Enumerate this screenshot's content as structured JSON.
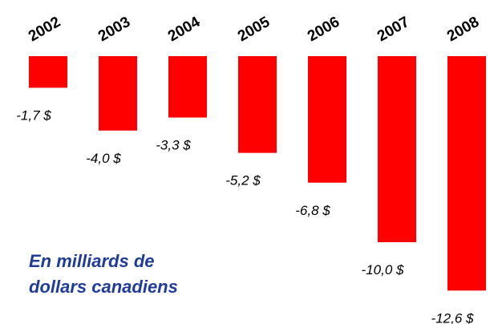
{
  "chart_data": {
    "type": "bar",
    "categories": [
      "2002",
      "2003",
      "2004",
      "2005",
      "2006",
      "2007",
      "2008"
    ],
    "values": [
      -1.7,
      -4.0,
      -3.3,
      -5.2,
      -6.8,
      -10.0,
      -12.6
    ],
    "value_labels": [
      "-1,7 $",
      "-4,0 $",
      "-3,3 $",
      "-5,2 $",
      "-6,8 $",
      "-10,0 $",
      "-12,6 $"
    ],
    "color": "#ff0000",
    "annotation": [
      "En milliards de",
      "dollars canadiens"
    ]
  }
}
